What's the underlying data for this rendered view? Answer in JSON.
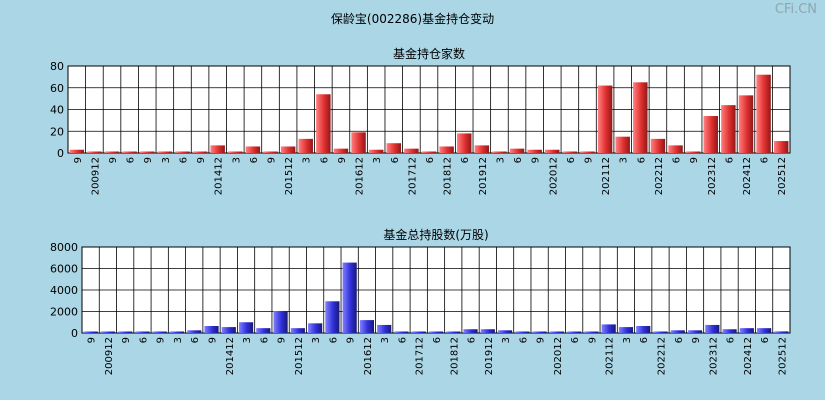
{
  "title": "保龄宝(002286)基金持仓变动",
  "watermark": "CFi.CN",
  "chart_data": [
    {
      "type": "bar",
      "title": "基金持仓家数",
      "ylim": [
        0,
        80
      ],
      "yticks": [
        0,
        20,
        40,
        60,
        80
      ],
      "grid": true,
      "color": "#e03030",
      "categories": [
        "9",
        "200912",
        "9",
        "6",
        "9",
        "3",
        "6",
        "9",
        "201412",
        "3",
        "6",
        "9",
        "201512",
        "3",
        "6",
        "9",
        "201612",
        "3",
        "6",
        "201712",
        "6",
        "201812",
        "6",
        "201912",
        "3",
        "6",
        "9",
        "202012",
        "6",
        "9",
        "202112",
        "3",
        "6",
        "202212",
        "6",
        "9",
        "202312",
        "6",
        "202412",
        "6",
        "202512"
      ],
      "values": [
        3,
        1,
        1,
        1,
        1,
        1,
        1,
        1,
        7,
        1,
        6,
        1,
        6,
        13,
        54,
        4,
        19,
        3,
        9,
        4,
        1,
        6,
        18,
        7,
        1,
        4,
        3,
        3,
        1,
        1,
        62,
        15,
        65,
        13,
        7,
        1,
        34,
        44,
        53,
        72,
        11
      ]
    },
    {
      "type": "bar",
      "title": "基金总持股数(万股)",
      "ylim": [
        0,
        8000
      ],
      "yticks": [
        0,
        2000,
        4000,
        6000,
        8000
      ],
      "grid": true,
      "color": "#3030d8",
      "categories": [
        "9",
        "200912",
        "9",
        "6",
        "9",
        "3",
        "6",
        "9",
        "201412",
        "3",
        "6",
        "9",
        "201512",
        "3",
        "6",
        "9",
        "201612",
        "3",
        "6",
        "201712",
        "6",
        "201812",
        "6",
        "201912",
        "3",
        "6",
        "9",
        "202012",
        "6",
        "9",
        "202112",
        "3",
        "6",
        "202212",
        "6",
        "9",
        "202312",
        "6",
        "202412",
        "6",
        "202512"
      ],
      "values": [
        60,
        60,
        50,
        50,
        50,
        50,
        250,
        650,
        550,
        1000,
        450,
        2050,
        450,
        900,
        2950,
        6550,
        1200,
        750,
        50,
        30,
        30,
        30,
        350,
        350,
        250,
        60,
        50,
        30,
        30,
        30,
        800,
        550,
        650,
        40,
        250,
        250,
        750,
        350,
        450,
        450,
        150
      ]
    }
  ]
}
